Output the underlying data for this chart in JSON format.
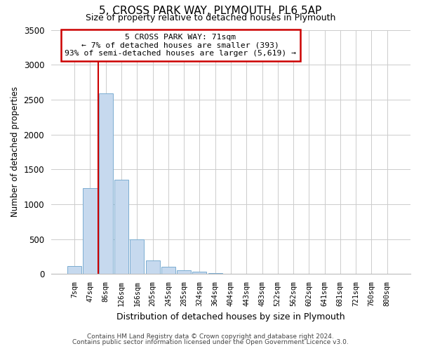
{
  "title": "5, CROSS PARK WAY, PLYMOUTH, PL6 5AP",
  "subtitle": "Size of property relative to detached houses in Plymouth",
  "xlabel": "Distribution of detached houses by size in Plymouth",
  "ylabel": "Number of detached properties",
  "bar_labels": [
    "7sqm",
    "47sqm",
    "86sqm",
    "126sqm",
    "166sqm",
    "205sqm",
    "245sqm",
    "285sqm",
    "324sqm",
    "364sqm",
    "404sqm",
    "443sqm",
    "483sqm",
    "522sqm",
    "562sqm",
    "602sqm",
    "641sqm",
    "681sqm",
    "721sqm",
    "760sqm",
    "800sqm"
  ],
  "bar_values": [
    120,
    1230,
    2590,
    1350,
    500,
    200,
    110,
    50,
    30,
    10,
    5,
    0,
    0,
    0,
    0,
    0,
    0,
    0,
    0,
    0,
    0
  ],
  "bar_color": "#c6d9ee",
  "bar_edgecolor": "#7badd1",
  "vline_color": "#cc0000",
  "annotation_title": "5 CROSS PARK WAY: 71sqm",
  "annotation_line1": "← 7% of detached houses are smaller (393)",
  "annotation_line2": "93% of semi-detached houses are larger (5,619) →",
  "annotation_box_color": "white",
  "annotation_box_edgecolor": "#cc0000",
  "ylim": [
    0,
    3500
  ],
  "yticks": [
    0,
    500,
    1000,
    1500,
    2000,
    2500,
    3000,
    3500
  ],
  "footer1": "Contains HM Land Registry data © Crown copyright and database right 2024.",
  "footer2": "Contains public sector information licensed under the Open Government Licence v3.0.",
  "background_color": "#ffffff",
  "grid_color": "#cccccc"
}
